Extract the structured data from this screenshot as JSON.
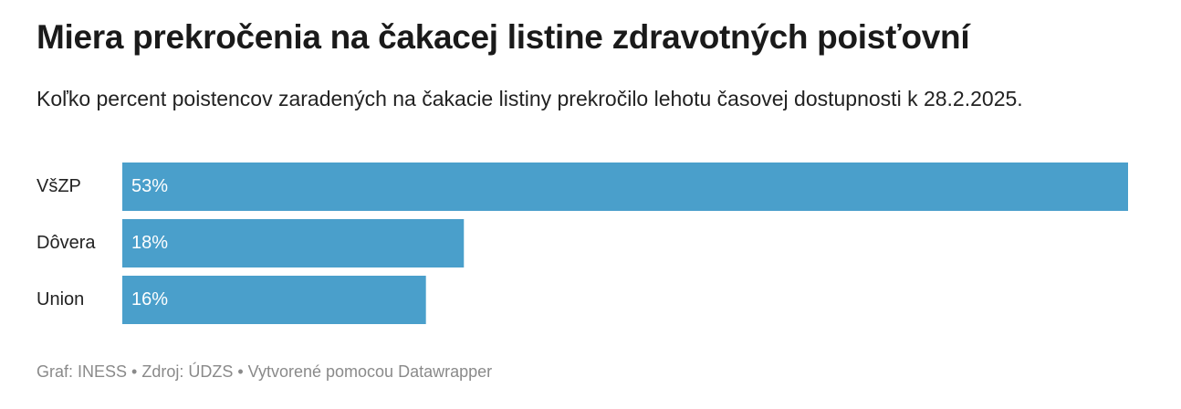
{
  "chart_data": {
    "type": "bar",
    "orientation": "horizontal",
    "title": "Miera prekročenia na čakacej listine zdravotných poisťovní",
    "subtitle": "Koľko percent poistencov zaradených na čakacie listiny prekročilo lehotu časovej dostupnosti k 28.2.2025.",
    "categories": [
      "VšZP",
      "Dôvera",
      "Union"
    ],
    "values": [
      53,
      18,
      16
    ],
    "value_labels": [
      "53%",
      "18%",
      "16%"
    ],
    "color": "#4a9fcb",
    "footer": "Graf: INESS • Zdroj: ÚDZS • Vytvorené pomocou Datawrapper"
  }
}
